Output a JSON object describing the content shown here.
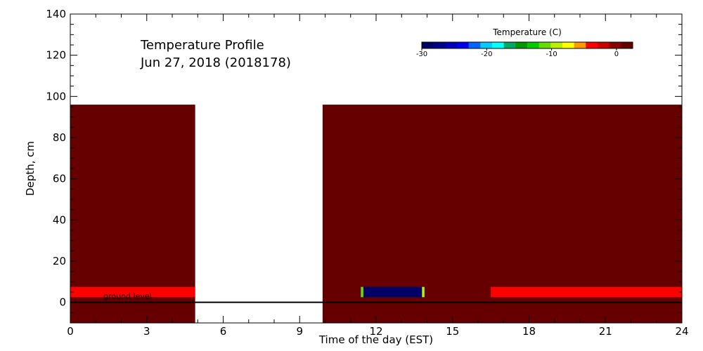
{
  "chart_data": {
    "type": "heatmap",
    "title_lines": [
      "Temperature Profile",
      "Jun 27, 2018 (2018178)"
    ],
    "xlabel": "Time of the day (EST)",
    "ylabel": "Depth, cm",
    "xlim": [
      0,
      24
    ],
    "ylim": [
      -10,
      140
    ],
    "xticks": [
      0,
      3,
      6,
      9,
      12,
      15,
      18,
      21,
      24
    ],
    "yticks": [
      0,
      20,
      40,
      60,
      80,
      100,
      120,
      140
    ],
    "ground_label": "ground level",
    "colorbar": {
      "title": "Temperature (C)",
      "range": [
        -30,
        2.5
      ],
      "tick_values": [
        -30,
        -20,
        -10,
        0
      ],
      "tick_labels": [
        "-30",
        "-20",
        "-10",
        "0"
      ],
      "colors": [
        "#000066",
        "#000088",
        "#0000bb",
        "#0000ee",
        "#0066ff",
        "#00ccff",
        "#00ffff",
        "#00aa66",
        "#009900",
        "#00cc00",
        "#66dd00",
        "#bbee00",
        "#ffff00",
        "#ff9900",
        "#ff0000",
        "#cc0000",
        "#880000",
        "#660000"
      ]
    },
    "cells": [
      {
        "x0": 0,
        "x1": 4.9,
        "y0": -10,
        "y1": 96,
        "color": "#660000"
      },
      {
        "x0": 0,
        "x1": 4.9,
        "y0": 2.5,
        "y1": 7.5,
        "color": "#ff0000"
      },
      {
        "x0": 9.9,
        "x1": 24,
        "y0": -10,
        "y1": 96,
        "color": "#660000"
      },
      {
        "x0": 11.4,
        "x1": 13.9,
        "y0": 2.5,
        "y1": 7.5,
        "color": "#000066"
      },
      {
        "x0": 11.4,
        "x1": 11.5,
        "y0": 2.5,
        "y1": 7.5,
        "color": "#66dd00"
      },
      {
        "x0": 13.8,
        "x1": 13.9,
        "y0": 2.5,
        "y1": 7.5,
        "color": "#bbee00"
      },
      {
        "x0": 16.5,
        "x1": 24,
        "y0": 2.5,
        "y1": 7.5,
        "color": "#ff0000"
      }
    ],
    "ground_line_y": 0
  }
}
